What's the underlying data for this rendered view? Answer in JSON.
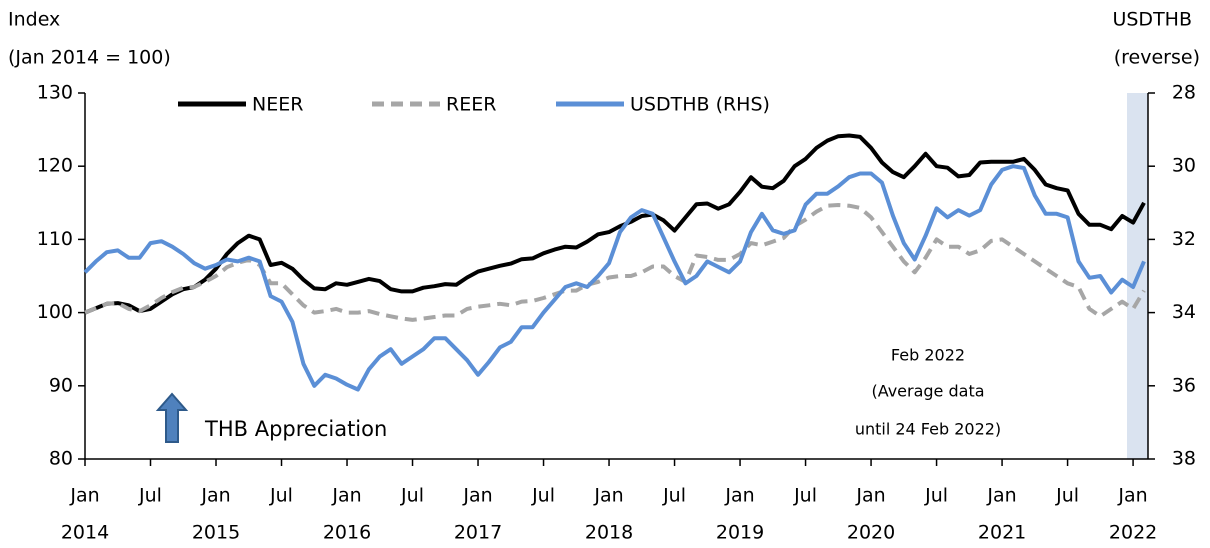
{
  "chart_data": {
    "type": "line",
    "y_label": [
      "Index",
      "(Jan 2014 = 100)"
    ],
    "y2_label": [
      "USDTHB",
      "(reverse)"
    ],
    "annotation": [
      "Feb 2022",
      "(Average data",
      "until 24 Feb 2022)"
    ],
    "arrow_label": "THB Appreciation",
    "categories": [
      "2014-01",
      "2014-02",
      "2014-03",
      "2014-04",
      "2014-05",
      "2014-06",
      "2014-07",
      "2014-08",
      "2014-09",
      "2014-10",
      "2014-11",
      "2014-12",
      "2015-01",
      "2015-02",
      "2015-03",
      "2015-04",
      "2015-05",
      "2015-06",
      "2015-07",
      "2015-08",
      "2015-09",
      "2015-10",
      "2015-11",
      "2015-12",
      "2016-01",
      "2016-02",
      "2016-03",
      "2016-04",
      "2016-05",
      "2016-06",
      "2016-07",
      "2016-08",
      "2016-09",
      "2016-10",
      "2016-11",
      "2016-12",
      "2017-01",
      "2017-02",
      "2017-03",
      "2017-04",
      "2017-05",
      "2017-06",
      "2017-07",
      "2017-08",
      "2017-09",
      "2017-10",
      "2017-11",
      "2017-12",
      "2018-01",
      "2018-02",
      "2018-03",
      "2018-04",
      "2018-05",
      "2018-06",
      "2018-07",
      "2018-08",
      "2018-09",
      "2018-10",
      "2018-11",
      "2018-12",
      "2019-01",
      "2019-02",
      "2019-03",
      "2019-04",
      "2019-05",
      "2019-06",
      "2019-07",
      "2019-08",
      "2019-09",
      "2019-10",
      "2019-11",
      "2019-12",
      "2020-01",
      "2020-02",
      "2020-03",
      "2020-04",
      "2020-05",
      "2020-06",
      "2020-07",
      "2020-08",
      "2020-09",
      "2020-10",
      "2020-11",
      "2020-12",
      "2021-01",
      "2021-02",
      "2021-03",
      "2021-04",
      "2021-05",
      "2021-06",
      "2021-07",
      "2021-08",
      "2021-09",
      "2021-10",
      "2021-11",
      "2021-12",
      "2022-01",
      "2022-02"
    ],
    "series": [
      {
        "name": "NEER",
        "color": "#000000",
        "style": "solid",
        "values": [
          100,
          100.6,
          101.2,
          101.3,
          101,
          100.2,
          100.5,
          101.5,
          102.5,
          103.2,
          103.5,
          104.5,
          106,
          108,
          109.5,
          110.5,
          110,
          106.5,
          106.8,
          106,
          104.5,
          103.3,
          103.2,
          104,
          103.8,
          104.2,
          104.6,
          104.3,
          103.2,
          102.9,
          102.9,
          103.4,
          103.6,
          103.9,
          103.8,
          104.8,
          105.6,
          106,
          106.4,
          106.7,
          107.3,
          107.4,
          108.1,
          108.6,
          109,
          108.9,
          109.7,
          110.7,
          111,
          111.8,
          112.4,
          113.2,
          113.4,
          112.6,
          111.2,
          113,
          114.8,
          114.9,
          114.2,
          114.8,
          116.5,
          118.5,
          117.2,
          117,
          118,
          120,
          121,
          122.5,
          123.5,
          124.1,
          124.2,
          124,
          122.5,
          120.5,
          119.2,
          118.5,
          120,
          121.7,
          120,
          119.8,
          118.6,
          118.8,
          120.5,
          120.6,
          120.6,
          120.6,
          121,
          119.5,
          117.5,
          117,
          116.7,
          113.5,
          112,
          112,
          111.4,
          113.2,
          112.3,
          115
        ]
      },
      {
        "name": "REER",
        "color": "#a6a6a6",
        "style": "dashed",
        "values": [
          100,
          100.6,
          101.2,
          101.3,
          100.5,
          100.2,
          101,
          102,
          102.8,
          103.4,
          103.5,
          104.2,
          105,
          106.2,
          106.8,
          107.2,
          106.5,
          104,
          104,
          102.5,
          101,
          100,
          100.2,
          100.5,
          100,
          100,
          100.2,
          99.8,
          99.5,
          99.2,
          99,
          99.2,
          99.4,
          99.6,
          99.6,
          100.5,
          100.8,
          101,
          101.2,
          101,
          101.5,
          101.6,
          102,
          102.5,
          103,
          103,
          103.8,
          104.2,
          104.8,
          105,
          105,
          105.5,
          106.3,
          106.3,
          105,
          104.2,
          107.8,
          107.6,
          107.2,
          107.2,
          108,
          109.5,
          109.2,
          109.7,
          110.2,
          111.8,
          112.7,
          113.8,
          114.6,
          114.7,
          114.6,
          114.3,
          113,
          111,
          109,
          107,
          105.5,
          107.5,
          110,
          109,
          109,
          108,
          108.5,
          109.8,
          110,
          109,
          108,
          107,
          106,
          105,
          104,
          103.5,
          100.5,
          99.5,
          100.5,
          101.5,
          100.5,
          103
        ]
      },
      {
        "name": "USDTHB (RHS)",
        "color": "#5b8fd6",
        "style": "solid",
        "axis": "y2",
        "values": [
          32.9,
          32.6,
          32.35,
          32.3,
          32.5,
          32.5,
          32.1,
          32.05,
          32.2,
          32.4,
          32.65,
          32.8,
          32.7,
          32.55,
          32.6,
          32.5,
          32.6,
          33.55,
          33.7,
          34.25,
          35.4,
          36,
          35.7,
          35.8,
          35.97,
          36.1,
          35.55,
          35.2,
          35,
          35.4,
          35.2,
          35,
          34.7,
          34.7,
          35,
          35.3,
          35.7,
          35.35,
          34.95,
          34.8,
          34.4,
          34.4,
          34,
          33.65,
          33.3,
          33.2,
          33.3,
          33,
          32.65,
          31.8,
          31.4,
          31.2,
          31.3,
          31.95,
          32.6,
          33.2,
          33,
          32.6,
          32.75,
          32.9,
          32.6,
          31.8,
          31.3,
          31.75,
          31.85,
          31.75,
          31.05,
          30.75,
          30.75,
          30.55,
          30.3,
          30.2,
          30.2,
          30.45,
          31.35,
          32.1,
          32.55,
          31.9,
          31.15,
          31.4,
          31.2,
          31.35,
          31.2,
          30.5,
          30.1,
          30,
          30.05,
          30.8,
          31.3,
          31.3,
          31.4,
          32.6,
          33.05,
          33,
          33.45,
          33.1,
          33.3,
          32.6
        ]
      }
    ],
    "ylim": [
      80,
      130
    ],
    "yticks": [
      80,
      90,
      100,
      110,
      120,
      130
    ],
    "y2lim": [
      38,
      28
    ],
    "y2ticks": [
      38,
      36,
      34,
      32,
      30,
      28
    ],
    "xticks": [
      {
        "value": "2014-01",
        "label": "Jan",
        "year": "2014"
      },
      {
        "value": "2014-07",
        "label": "Jul"
      },
      {
        "value": "2015-01",
        "label": "Jan",
        "year": "2015"
      },
      {
        "value": "2015-07",
        "label": "Jul"
      },
      {
        "value": "2016-01",
        "label": "Jan",
        "year": "2016"
      },
      {
        "value": "2016-07",
        "label": "Jul"
      },
      {
        "value": "2017-01",
        "label": "Jan",
        "year": "2017"
      },
      {
        "value": "2017-07",
        "label": "Jul"
      },
      {
        "value": "2018-01",
        "label": "Jan",
        "year": "2018"
      },
      {
        "value": "2018-07",
        "label": "Jul"
      },
      {
        "value": "2019-01",
        "label": "Jan",
        "year": "2019"
      },
      {
        "value": "2019-07",
        "label": "Jul"
      },
      {
        "value": "2020-01",
        "label": "Jan",
        "year": "2020"
      },
      {
        "value": "2020-07",
        "label": "Jul"
      },
      {
        "value": "2021-01",
        "label": "Jan",
        "year": "2021"
      },
      {
        "value": "2021-07",
        "label": "Jul"
      },
      {
        "value": "2022-01",
        "label": "Jan",
        "year": "2022"
      }
    ],
    "grid": false,
    "legend": "top"
  }
}
